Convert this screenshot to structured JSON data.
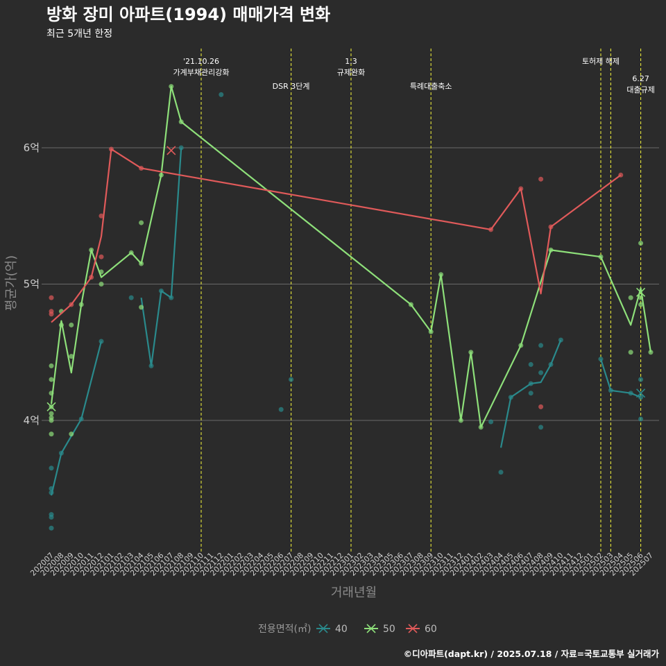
{
  "chart_data": {
    "type": "line",
    "title": "방화 장미 아파트(1994) 매매가격 변화",
    "subtitle": "최근 5개년 한정",
    "xlabel": "거래년월",
    "ylabel": "평균가(억)",
    "ylim": [
      3.0,
      6.9
    ],
    "yticks": [
      4,
      5,
      6
    ],
    "ytick_labels": [
      "4억",
      "5억",
      "6억"
    ],
    "grid": true,
    "legend_title": "전용면적(㎡)",
    "legend_position": "bottom",
    "categories": [
      "202007",
      "202008",
      "202009",
      "202010",
      "202011",
      "202012",
      "202101",
      "202102",
      "202103",
      "202104",
      "202105",
      "202106",
      "202107",
      "202108",
      "202109",
      "202110",
      "202111",
      "202112",
      "202201",
      "202202",
      "202203",
      "202204",
      "202205",
      "202206",
      "202207",
      "202208",
      "202209",
      "202210",
      "202211",
      "202212",
      "202301",
      "202302",
      "202303",
      "202304",
      "202305",
      "202306",
      "202307",
      "202308",
      "202309",
      "202310",
      "202311",
      "202312",
      "202401",
      "202402",
      "202403",
      "202404",
      "202405",
      "202406",
      "202407",
      "202408",
      "202409",
      "202410",
      "202411",
      "202412",
      "202501",
      "202502",
      "202503",
      "202504",
      "202505",
      "202506",
      "202507"
    ],
    "events": [
      {
        "x": "202110",
        "label": "'21.10.26\n가계부채관리강화",
        "label_row": 0
      },
      {
        "x": "202207",
        "label": "DSR 3단계",
        "label_row": 1
      },
      {
        "x": "202301",
        "label": "1.3\n규제완화",
        "label_row": 0
      },
      {
        "x": "202309",
        "label": "특례대출축소",
        "label_row": 1
      },
      {
        "x": "202502",
        "label": "토허제 해제",
        "label_row": 0
      },
      {
        "x": "202503",
        "label": "",
        "label_row": 0
      },
      {
        "x": "202506",
        "label": "6.27\n대출규제",
        "label_row": 2
      }
    ],
    "series": [
      {
        "name": "40",
        "color": "#2a8a8c",
        "line": [
          [
            "202007",
            3.45
          ],
          [
            "202008",
            3.76
          ],
          [
            "202010",
            4.01
          ],
          [
            "202012",
            4.58
          ],
          null,
          [
            "202104",
            4.9
          ],
          [
            "202105",
            4.4
          ],
          [
            "202106",
            4.95
          ],
          [
            "202107",
            4.9
          ],
          [
            "202108",
            6.0
          ],
          null,
          [
            "202404",
            3.8
          ],
          [
            "202405",
            4.17
          ],
          [
            "202407",
            4.27
          ],
          [
            "202408",
            4.28
          ],
          [
            "202409",
            4.41
          ],
          [
            "202410",
            4.59
          ],
          null,
          [
            "202502",
            4.45
          ],
          [
            "202503",
            4.22
          ],
          [
            "202505",
            4.2
          ],
          [
            "202506",
            4.17
          ]
        ],
        "points": [
          [
            "202007",
            3.21
          ],
          [
            "202007",
            3.29
          ],
          [
            "202007",
            3.31
          ],
          [
            "202007",
            3.47
          ],
          [
            "202007",
            3.5
          ],
          [
            "202007",
            3.65
          ],
          [
            "202008",
            3.76
          ],
          [
            "202010",
            4.01
          ],
          [
            "202012",
            4.58
          ],
          [
            "202103",
            4.9
          ],
          [
            "202105",
            4.4
          ],
          [
            "202106",
            4.95
          ],
          [
            "202107",
            4.9
          ],
          [
            "202108",
            6.0
          ],
          [
            "202112",
            6.39
          ],
          [
            "202206",
            4.08
          ],
          [
            "202207",
            4.3
          ],
          [
            "202403",
            3.99
          ],
          [
            "202404",
            3.62
          ],
          [
            "202405",
            4.17
          ],
          [
            "202407",
            4.2
          ],
          [
            "202407",
            4.27
          ],
          [
            "202407",
            4.41
          ],
          [
            "202408",
            3.95
          ],
          [
            "202408",
            4.35
          ],
          [
            "202408",
            4.55
          ],
          [
            "202409",
            4.41
          ],
          [
            "202410",
            4.59
          ],
          [
            "202502",
            4.45
          ],
          [
            "202503",
            4.22
          ],
          [
            "202505",
            4.2
          ],
          [
            "202506",
            4.01
          ],
          [
            "202506",
            4.17
          ],
          [
            "202506",
            4.3
          ]
        ],
        "cross": [
          [
            "202506",
            4.2
          ]
        ]
      },
      {
        "name": "50",
        "color": "#8ee07a",
        "line": [
          [
            "202007",
            4.12
          ],
          [
            "202008",
            4.73
          ],
          [
            "202009",
            4.35
          ],
          [
            "202010",
            4.85
          ],
          [
            "202011",
            5.25
          ],
          [
            "202012",
            5.05
          ],
          [
            "202103",
            5.23
          ],
          [
            "202104",
            5.15
          ],
          [
            "202106",
            5.8
          ],
          [
            "202107",
            6.45
          ],
          [
            "202108",
            6.19
          ],
          [
            "202307",
            4.85
          ],
          [
            "202309",
            4.65
          ],
          [
            "202310",
            5.07
          ],
          [
            "202312",
            4.0
          ],
          [
            "202401",
            4.5
          ],
          [
            "202402",
            3.95
          ],
          [
            "202406",
            4.55
          ],
          [
            "202409",
            5.25
          ],
          [
            "202502",
            5.2
          ],
          [
            "202505",
            4.7
          ],
          [
            "202506",
            4.97
          ],
          [
            "202507",
            4.5
          ]
        ],
        "points": [
          [
            "202007",
            3.9
          ],
          [
            "202007",
            4.0
          ],
          [
            "202007",
            4.02
          ],
          [
            "202007",
            4.05
          ],
          [
            "202007",
            4.1
          ],
          [
            "202007",
            4.2
          ],
          [
            "202007",
            4.3
          ],
          [
            "202007",
            4.4
          ],
          [
            "202008",
            4.8
          ],
          [
            "202008",
            4.7
          ],
          [
            "202009",
            4.7
          ],
          [
            "202009",
            4.47
          ],
          [
            "202009",
            3.9
          ],
          [
            "202010",
            4.85
          ],
          [
            "202011",
            5.25
          ],
          [
            "202012",
            5.0
          ],
          [
            "202012",
            5.09
          ],
          [
            "202103",
            5.23
          ],
          [
            "202104",
            5.45
          ],
          [
            "202104",
            5.15
          ],
          [
            "202104",
            4.83
          ],
          [
            "202106",
            5.8
          ],
          [
            "202107",
            6.45
          ],
          [
            "202108",
            6.19
          ],
          [
            "202307",
            4.85
          ],
          [
            "202309",
            4.65
          ],
          [
            "202310",
            5.07
          ],
          [
            "202312",
            4.0
          ],
          [
            "202401",
            4.5
          ],
          [
            "202402",
            3.95
          ],
          [
            "202406",
            4.55
          ],
          [
            "202409",
            5.25
          ],
          [
            "202502",
            5.2
          ],
          [
            "202505",
            4.5
          ],
          [
            "202505",
            4.9
          ],
          [
            "202506",
            4.85
          ],
          [
            "202506",
            4.9
          ],
          [
            "202506",
            5.3
          ],
          [
            "202507",
            4.5
          ]
        ],
        "cross": [
          [
            "202007",
            4.1
          ],
          [
            "202506",
            4.94
          ]
        ]
      },
      {
        "name": "60",
        "color": "#e05a5a",
        "line": [
          [
            "202007",
            4.72
          ],
          [
            "202009",
            4.85
          ],
          [
            "202011",
            5.05
          ],
          [
            "202012",
            5.35
          ],
          [
            "202101",
            5.99
          ],
          [
            "202104",
            5.85
          ],
          [
            "202403",
            5.4
          ],
          [
            "202406",
            5.7
          ],
          [
            "202408",
            4.93
          ],
          [
            "202409",
            5.42
          ],
          [
            "202504",
            5.8
          ]
        ],
        "points": [
          [
            "202007",
            4.78
          ],
          [
            "202007",
            4.8
          ],
          [
            "202007",
            4.9
          ],
          [
            "202009",
            4.85
          ],
          [
            "202011",
            5.05
          ],
          [
            "202012",
            5.2
          ],
          [
            "202012",
            5.5
          ],
          [
            "202101",
            5.99
          ],
          [
            "202104",
            5.85
          ],
          [
            "202403",
            5.4
          ],
          [
            "202406",
            5.7
          ],
          [
            "202408",
            4.1
          ],
          [
            "202408",
            5.77
          ],
          [
            "202409",
            5.42
          ],
          [
            "202504",
            5.8
          ]
        ],
        "cross": [
          [
            "202107",
            5.98
          ]
        ]
      }
    ],
    "caption": "©디아파트(dapt.kr) / 2025.07.18 / 자료=국토교통부 실거래가"
  }
}
